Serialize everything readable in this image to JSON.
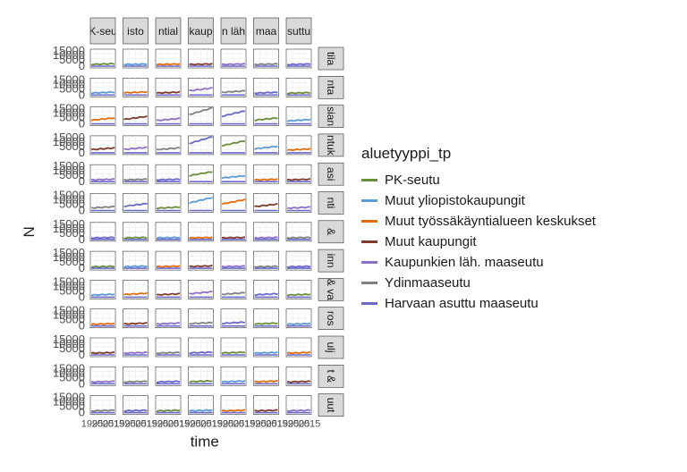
{
  "chart_data": {
    "type": "line",
    "xlabel": "time",
    "ylabel": "N",
    "y_ticks": [
      "15000",
      "10000",
      "5000",
      "0"
    ],
    "x_tick_labels": [
      "1995",
      "2005",
      "2015"
    ],
    "columns": [
      "K-seu",
      "isto",
      "ntial",
      "kaup",
      "n läh",
      "maa",
      "suttu"
    ],
    "rows": [
      "tila",
      "nta",
      "sian",
      "ntuk",
      "asi",
      "nti",
      "&",
      "inn",
      "& va",
      "ros",
      "ulj",
      "t &",
      "uut"
    ],
    "y_max": 15000,
    "legend": {
      "title": "aluetyyppi_tp",
      "position": "right",
      "entries": [
        {
          "label": "PK-seutu",
          "color": "#6b8e3a"
        },
        {
          "label": "Muut yliopistokaupungit",
          "color": "#5b9bd5"
        },
        {
          "label": "Muut työssäkäyntialueen keskukset",
          "color": "#e36c0a"
        },
        {
          "label": "Muut kaupungit",
          "color": "#7f3b2e"
        },
        {
          "label": "Kaupunkien läh. maaseutu",
          "color": "#8e6fc8"
        },
        {
          "label": "Ydinmaaseutu",
          "color": "#808080"
        },
        {
          "label": "Harvaan asuttu maaseutu",
          "color": "#6a68c9"
        }
      ]
    },
    "panels": [
      {
        "row": 0,
        "levels": [
          1500,
          1200,
          1200,
          1300,
          1300,
          1300,
          1200
        ]
      },
      {
        "row": 1,
        "levels": [
          2000,
          2300,
          2000,
          6000,
          3200,
          1800,
          1500
        ]
      },
      {
        "row": 2,
        "levels": [
          5000,
          6500,
          4500,
          15000,
          12000,
          5000,
          3500
        ]
      },
      {
        "row": 3,
        "levels": [
          4000,
          4500,
          4000,
          15000,
          11000,
          5500,
          3000
        ]
      },
      {
        "row": 4,
        "levels": [
          1500,
          1500,
          1500,
          9000,
          5000,
          1500,
          1500
        ]
      },
      {
        "row": 5,
        "levels": [
          3000,
          6000,
          2500,
          12000,
          10000,
          5500,
          2500
        ]
      },
      {
        "row": 6,
        "levels": [
          1000,
          1000,
          1000,
          1000,
          1000,
          1000,
          1000
        ]
      },
      {
        "row": 7,
        "levels": [
          1000,
          1200,
          1200,
          1500,
          1200,
          1000,
          1000
        ]
      },
      {
        "row": 8,
        "levels": [
          2000,
          3000,
          2500,
          4500,
          3500,
          2500,
          2000
        ]
      },
      {
        "row": 9,
        "levels": [
          1500,
          2000,
          2000,
          2500,
          3000,
          2000,
          1500
        ]
      },
      {
        "row": 10,
        "levels": [
          1500,
          1500,
          1500,
          1800,
          1800,
          1500,
          1500
        ]
      },
      {
        "row": 11,
        "levels": [
          1500,
          1500,
          1500,
          2000,
          1800,
          1800,
          1500
        ]
      },
      {
        "row": 12,
        "levels": [
          1500,
          1500,
          1500,
          1500,
          1500,
          1500,
          1500
        ]
      }
    ]
  }
}
